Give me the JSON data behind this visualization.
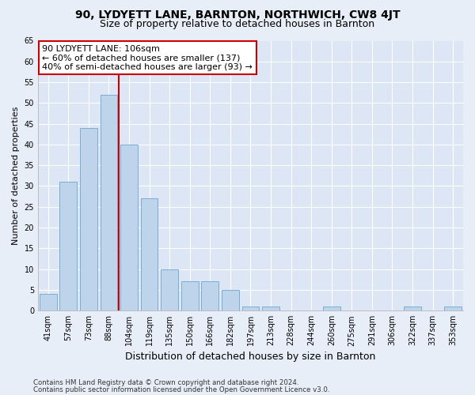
{
  "title": "90, LYDYETT LANE, BARNTON, NORTHWICH, CW8 4JT",
  "subtitle": "Size of property relative to detached houses in Barnton",
  "xlabel": "Distribution of detached houses by size in Barnton",
  "ylabel": "Number of detached properties",
  "categories": [
    "41sqm",
    "57sqm",
    "73sqm",
    "88sqm",
    "104sqm",
    "119sqm",
    "135sqm",
    "150sqm",
    "166sqm",
    "182sqm",
    "197sqm",
    "213sqm",
    "228sqm",
    "244sqm",
    "260sqm",
    "275sqm",
    "291sqm",
    "306sqm",
    "322sqm",
    "337sqm",
    "353sqm"
  ],
  "values": [
    4,
    31,
    44,
    52,
    40,
    27,
    10,
    7,
    7,
    5,
    1,
    1,
    0,
    0,
    1,
    0,
    0,
    0,
    1,
    0,
    1
  ],
  "bar_color": "#bdd4ea",
  "bar_edge_color": "#7aadd4",
  "vline_color": "#cc0000",
  "vline_x_index": 3,
  "annotation_line1": "90 LYDYETT LANE: 106sqm",
  "annotation_line2": "← 60% of detached houses are smaller (137)",
  "annotation_line3": "40% of semi-detached houses are larger (93) →",
  "annotation_box_color": "#ffffff",
  "annotation_box_edge": "#cc0000",
  "ylim": [
    0,
    65
  ],
  "yticks": [
    0,
    5,
    10,
    15,
    20,
    25,
    30,
    35,
    40,
    45,
    50,
    55,
    60,
    65
  ],
  "footer1": "Contains HM Land Registry data © Crown copyright and database right 2024.",
  "footer2": "Contains public sector information licensed under the Open Government Licence v3.0.",
  "fig_bg_color": "#e8eef7",
  "plot_bg_color": "#dce6f5",
  "title_fontsize": 10,
  "subtitle_fontsize": 9,
  "tick_fontsize": 7,
  "ylabel_fontsize": 8,
  "xlabel_fontsize": 9,
  "annotation_fontsize": 8
}
